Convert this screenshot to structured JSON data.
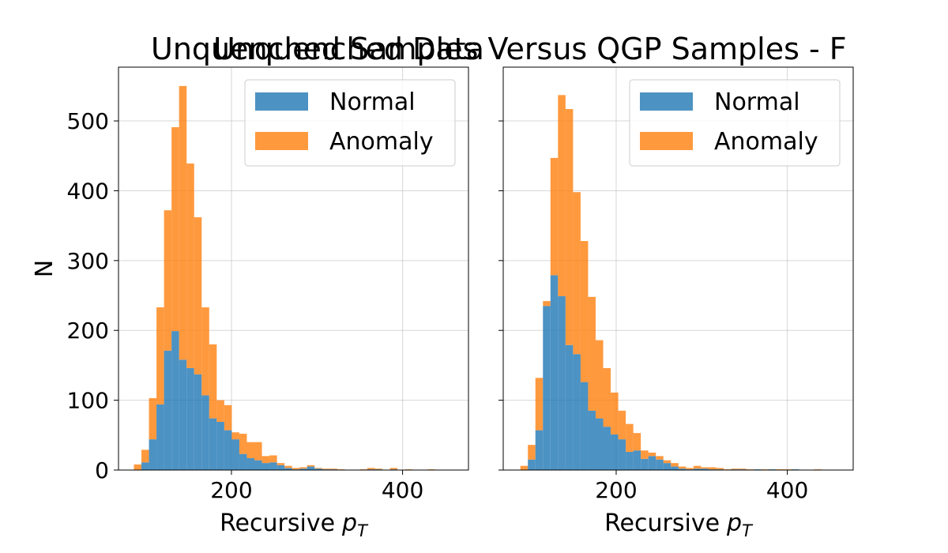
{
  "chart_data": [
    {
      "type": "histogram",
      "suptitle": "Unquenched Samples Versus QGP Samples  - F",
      "title": "Unquenched Data",
      "xlabel": "Recursive",
      "xlabel_symbol": "p",
      "xlabel_subscript": "T",
      "ylabel": "N",
      "bins": [
        86,
        94.8,
        103.6,
        112.4,
        121.2,
        130,
        138.8,
        147.6,
        156.4,
        165.2,
        174,
        182.8,
        191.6,
        200.4,
        209.2,
        218,
        226.8,
        235.6,
        244.4,
        253.2,
        262,
        270.8,
        279.6,
        288.4,
        297.2,
        306,
        314.8,
        323.6,
        332.4,
        341.2,
        350,
        358.8,
        367.6,
        376.4,
        385.2,
        394,
        402.8,
        411.6,
        420.4,
        429.2,
        438,
        446.8
      ],
      "stacked": true,
      "series": [
        {
          "name": "Normal",
          "color": "#1f77b4",
          "values": [
            0,
            11,
            44,
            94,
            171,
            199,
            158,
            146,
            137,
            107,
            74,
            69,
            57,
            44,
            23,
            17,
            14,
            10,
            11,
            7,
            3,
            1,
            2,
            5,
            2,
            1,
            1,
            0,
            0,
            0,
            0,
            1,
            1,
            0,
            1,
            0,
            0,
            0,
            0,
            0,
            0
          ]
        },
        {
          "name": "Anomaly",
          "color": "#ff7f0e",
          "values": [
            8,
            18,
            59,
            139,
            201,
            292,
            392,
            293,
            225,
            126,
            106,
            31,
            36,
            10,
            29,
            23,
            26,
            10,
            10,
            3,
            3,
            2,
            2,
            2,
            1,
            1,
            1,
            1,
            0,
            0,
            1,
            2,
            1,
            0,
            2,
            0,
            1,
            0,
            0,
            1,
            0
          ]
        }
      ],
      "xlim": [
        68,
        477
      ],
      "xticks": [
        200,
        400
      ],
      "ylim": [
        0,
        577
      ],
      "yticks": [
        0,
        100,
        200,
        300,
        400,
        500
      ],
      "grid": true,
      "legend": "upper right"
    },
    {
      "type": "histogram",
      "xlabel": "Recursive",
      "xlabel_symbol": "p",
      "xlabel_subscript": "T",
      "bins": [
        88,
        96.8,
        105.6,
        114.4,
        123.2,
        132,
        140.8,
        149.6,
        158.4,
        167.2,
        176,
        184.8,
        193.6,
        202.4,
        211.2,
        220,
        228.8,
        237.6,
        246.4,
        255.2,
        264,
        272.8,
        281.6,
        290.4,
        299.2,
        308,
        316.8,
        325.6,
        334.4,
        343.2,
        352,
        360.8,
        369.6,
        378.4,
        387.2,
        396,
        404.8,
        413.6,
        422.4,
        431.2,
        440,
        448.8
      ],
      "stacked": true,
      "series": [
        {
          "name": "Normal",
          "color": "#1f77b4",
          "values": [
            0,
            15,
            57,
            235,
            279,
            249,
            179,
            166,
            126,
            85,
            74,
            62,
            51,
            44,
            26,
            28,
            16,
            20,
            15,
            10,
            5,
            2,
            1,
            2,
            2,
            1,
            1,
            0,
            1,
            1,
            0,
            1,
            0,
            1,
            0,
            0,
            1,
            0,
            0,
            0,
            0
          ]
        },
        {
          "name": "Anomaly",
          "color": "#ff7f0e",
          "values": [
            6,
            21,
            75,
            7,
            168,
            288,
            338,
            232,
            202,
            163,
            112,
            84,
            60,
            41,
            40,
            25,
            12,
            5,
            5,
            4,
            5,
            3,
            2,
            4,
            2,
            3,
            2,
            1,
            1,
            1,
            1,
            0,
            1,
            0,
            1,
            1,
            0,
            0,
            0,
            1,
            0
          ]
        }
      ],
      "xlim": [
        68,
        477
      ],
      "xticks": [
        200,
        400
      ],
      "ylim": [
        0,
        577
      ],
      "yticks": [
        0,
        100,
        200,
        300,
        400,
        500
      ],
      "grid": true,
      "legend": "upper right"
    }
  ]
}
